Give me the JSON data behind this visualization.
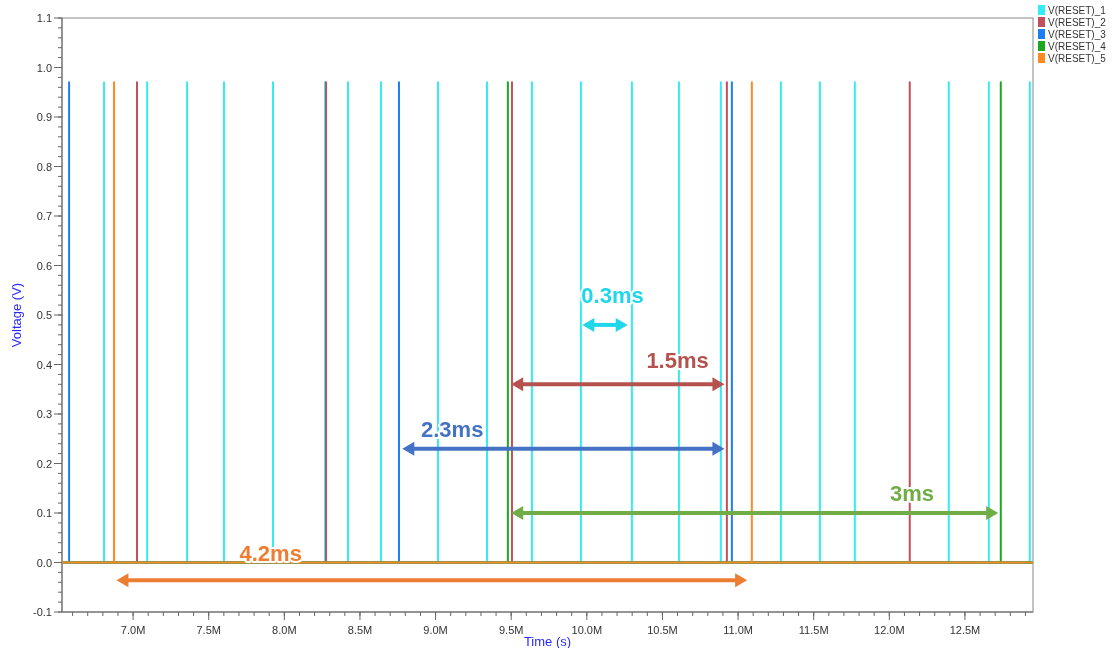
{
  "chart_data": {
    "type": "line",
    "xlabel": "Time (s)",
    "ylabel": "Voltage (V)",
    "xlim": [
      6.53,
      12.95
    ],
    "ylim": [
      -0.1,
      1.1
    ],
    "xticks": [
      {
        "value": 7.0,
        "label": "7.0M"
      },
      {
        "value": 7.5,
        "label": "7.5M"
      },
      {
        "value": 8.0,
        "label": "8.0M"
      },
      {
        "value": 8.5,
        "label": "8.5M"
      },
      {
        "value": 9.0,
        "label": "9.0M"
      },
      {
        "value": 9.5,
        "label": "9.5M"
      },
      {
        "value": 10.0,
        "label": "10.0M"
      },
      {
        "value": 10.5,
        "label": "10.5M"
      },
      {
        "value": 11.0,
        "label": "11.0M"
      },
      {
        "value": 11.5,
        "label": "11.5M"
      },
      {
        "value": 12.0,
        "label": "12.0M"
      },
      {
        "value": 12.5,
        "label": "12.5M"
      }
    ],
    "yticks": [
      -0.1,
      {
        "value": 0,
        "label": "0.0"
      },
      0.1,
      0.2,
      0.3,
      0.4,
      0.5,
      0.6,
      0.7,
      0.8,
      0.9,
      {
        "value": 1,
        "label": "1.0"
      },
      1.1
    ],
    "grid": false,
    "legend": "top right",
    "marker": "none",
    "line_style": "solid",
    "series": [
      {
        "name": "V(RESET)_1",
        "color": "#33ecf5",
        "x": [
          6.53,
          6.808,
          6.808,
          6.808,
          7.093,
          7.093,
          7.093,
          7.357,
          7.357,
          7.357,
          7.601,
          7.601,
          7.601,
          7.925,
          7.925,
          7.925,
          8.269,
          8.269,
          8.269,
          8.421,
          8.421,
          8.421,
          8.639,
          8.639,
          8.639,
          9.016,
          9.016,
          9.016,
          9.34,
          9.34,
          9.34,
          9.637,
          9.637,
          9.637,
          9.961,
          9.961,
          9.961,
          10.298,
          10.298,
          10.298,
          10.609,
          10.609,
          10.609,
          10.886,
          10.886,
          10.886,
          11.283,
          11.283,
          11.283,
          11.541,
          11.541,
          11.541,
          11.772,
          11.772,
          11.772,
          12.393,
          12.393,
          12.393,
          12.658,
          12.658,
          12.658,
          12.929,
          12.929,
          12.929,
          12.95
        ],
        "values": [
          0,
          0,
          0.97,
          0,
          0,
          0.97,
          0,
          0,
          0.97,
          0,
          0,
          0.97,
          0,
          0,
          0.97,
          0,
          0,
          0.97,
          0,
          0,
          0.97,
          0,
          0,
          0.97,
          0,
          0,
          0.97,
          0,
          0,
          0.97,
          0,
          0,
          0.97,
          0,
          0,
          0.97,
          0,
          0,
          0.97,
          0,
          0,
          0.97,
          0,
          0,
          0.97,
          0,
          0,
          0.97,
          0,
          0,
          0.97,
          0,
          0,
          0.97,
          0,
          0,
          0.97,
          0,
          0,
          0.97,
          0,
          0,
          0.97,
          0,
          0
        ]
      },
      {
        "name": "V(RESET)_2",
        "color": "#c0505c",
        "x": [
          6.53,
          7.026,
          7.026,
          7.026,
          8.276,
          8.276,
          8.276,
          9.505,
          9.505,
          9.505,
          10.926,
          10.926,
          10.926,
          12.135,
          12.135,
          12.135,
          12.95
        ],
        "values": [
          0,
          0,
          0.97,
          0,
          0,
          0.97,
          0,
          0,
          0.97,
          0,
          0,
          0.97,
          0,
          0,
          0.97,
          0,
          0
        ]
      },
      {
        "name": "V(RESET)_3",
        "color": "#1e7ef5",
        "x": [
          6.53,
          6.577,
          6.577,
          6.577,
          8.758,
          8.758,
          8.758,
          10.959,
          10.959,
          10.959,
          12.95
        ],
        "values": [
          0,
          0,
          0.97,
          0,
          0,
          0.97,
          0,
          0,
          0.97,
          0,
          0
        ]
      },
      {
        "name": "V(RESET)_4",
        "color": "#1fa81f",
        "x": [
          6.53,
          9.478,
          9.478,
          9.478,
          12.737,
          12.737,
          12.737,
          12.95
        ],
        "values": [
          0,
          0,
          0.97,
          0,
          0,
          0.97,
          0,
          0
        ]
      },
      {
        "name": "V(RESET)_5",
        "color": "#ff8a1f",
        "x": [
          6.53,
          6.874,
          6.874,
          6.874,
          11.091,
          11.091,
          11.091,
          12.95
        ],
        "values": [
          0,
          0,
          0.97,
          0,
          0,
          0.97,
          0,
          0
        ]
      }
    ],
    "annotations": [
      "0.3ms",
      "1.5ms",
      "2.3ms",
      "3ms",
      "4.2ms"
    ]
  }
}
